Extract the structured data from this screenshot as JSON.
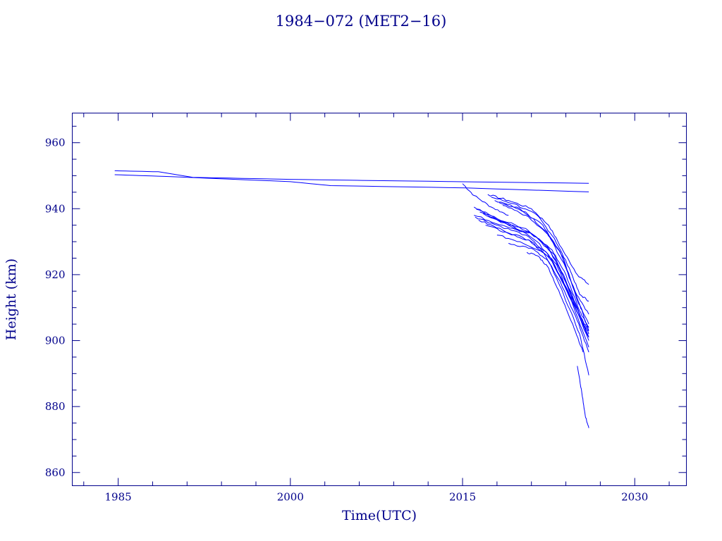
{
  "chart_data": {
    "type": "line",
    "title": "1984−072 (MET2−16)",
    "xlabel": "Time(UTC)",
    "ylabel": "Height (km)",
    "xlim": [
      1981,
      2034.5
    ],
    "ylim": [
      856,
      969
    ],
    "xticks": [
      1985,
      2000,
      2015,
      2030
    ],
    "yticks": [
      860,
      880,
      900,
      920,
      940,
      960
    ],
    "grid": false,
    "legend": "none",
    "colors": {
      "axes": "#00008b",
      "series": "#0000ff",
      "title": "#00008b"
    },
    "series": [
      {
        "points": [
          [
            1984.7,
            951.5
          ],
          [
            1988.5,
            951.2
          ],
          [
            1991.5,
            949.5
          ],
          [
            2000,
            948.9
          ],
          [
            2010,
            948.4
          ],
          [
            2026,
            947.7
          ]
        ]
      },
      {
        "points": [
          [
            1984.7,
            950.3
          ],
          [
            1989,
            949.8
          ],
          [
            2000,
            948.2
          ],
          [
            2003.5,
            947.0
          ],
          [
            2015.3,
            946.3
          ],
          [
            2026,
            945.1
          ]
        ]
      },
      {
        "points": [
          [
            2015.0,
            947.6
          ],
          [
            2016.0,
            944.0
          ],
          [
            2017.5,
            940.5
          ],
          [
            2019,
            938.0
          ]
        ]
      },
      {
        "points": [
          [
            2017.2,
            944.3
          ],
          [
            2019,
            942.5
          ],
          [
            2021,
            940.0
          ],
          [
            2022.5,
            935.0
          ],
          [
            2023.8,
            927.0
          ],
          [
            2025,
            920.0
          ],
          [
            2026,
            917.0
          ]
        ]
      },
      {
        "points": [
          [
            2017.5,
            943.5
          ],
          [
            2019.5,
            941.5
          ],
          [
            2021.5,
            938.0
          ],
          [
            2023,
            931.0
          ],
          [
            2024.3,
            922.0
          ],
          [
            2025.2,
            914.0
          ],
          [
            2026,
            912.0
          ]
        ]
      },
      {
        "points": [
          [
            2017.8,
            942.5
          ],
          [
            2020,
            940.0
          ],
          [
            2022,
            935.0
          ],
          [
            2023.5,
            927.0
          ],
          [
            2024.8,
            915.0
          ],
          [
            2026,
            908.0
          ]
        ]
      },
      {
        "points": [
          [
            2018.2,
            941.8
          ],
          [
            2020.5,
            939.0
          ],
          [
            2022.3,
            933.0
          ],
          [
            2023.8,
            925.0
          ],
          [
            2025,
            912.0
          ],
          [
            2026,
            905.0
          ]
        ]
      },
      {
        "points": [
          [
            2018.5,
            941.0
          ],
          [
            2020.5,
            938.0
          ],
          [
            2022.5,
            932.0
          ],
          [
            2024,
            922.0
          ],
          [
            2025.2,
            911.0
          ],
          [
            2026,
            903.0
          ]
        ]
      },
      {
        "points": [
          [
            2016.0,
            940.5
          ],
          [
            2018,
            937.0
          ],
          [
            2020.5,
            934.0
          ],
          [
            2022.3,
            929.0
          ],
          [
            2023.8,
            920.0
          ],
          [
            2025,
            910.0
          ],
          [
            2026,
            901.0
          ]
        ]
      },
      {
        "points": [
          [
            2016.2,
            939.8
          ],
          [
            2018.5,
            936.0
          ],
          [
            2020.8,
            933.0
          ],
          [
            2022.5,
            928.0
          ],
          [
            2024,
            918.0
          ],
          [
            2025.3,
            907.0
          ],
          [
            2026,
            902.0
          ]
        ]
      },
      {
        "points": [
          [
            2016.5,
            939.0
          ],
          [
            2019,
            935.0
          ],
          [
            2021.2,
            932.0
          ],
          [
            2023,
            926.0
          ],
          [
            2024.3,
            915.0
          ],
          [
            2026,
            900.0
          ]
        ]
      },
      {
        "points": [
          [
            2016.8,
            938.5
          ],
          [
            2019.5,
            934.5
          ],
          [
            2021.5,
            930.0
          ],
          [
            2023.2,
            923.0
          ],
          [
            2024.5,
            912.0
          ],
          [
            2026,
            898.0
          ]
        ]
      },
      {
        "points": [
          [
            2016.0,
            938.0
          ],
          [
            2018.5,
            935.0
          ],
          [
            2021,
            932.5
          ],
          [
            2022.8,
            927.5
          ],
          [
            2024,
            920.0
          ],
          [
            2025.2,
            909.0
          ],
          [
            2026,
            904.0
          ]
        ]
      },
      {
        "points": [
          [
            2016.1,
            937.5
          ],
          [
            2018,
            935.0
          ],
          [
            2020.5,
            932.0
          ],
          [
            2022.5,
            926.0
          ],
          [
            2024,
            916.0
          ],
          [
            2025.5,
            905.0
          ],
          [
            2026,
            903.0
          ]
        ]
      },
      {
        "points": [
          [
            2016.4,
            936.5
          ],
          [
            2018.5,
            933.5
          ],
          [
            2020.8,
            930.5
          ],
          [
            2022.7,
            925.0
          ],
          [
            2024.2,
            915.0
          ],
          [
            2025.6,
            905.0
          ],
          [
            2026,
            904.0
          ]
        ]
      },
      {
        "points": [
          [
            2017,
            935.0
          ],
          [
            2019,
            932.5
          ],
          [
            2021,
            930.0
          ],
          [
            2022.8,
            924.0
          ],
          [
            2024.5,
            912.0
          ],
          [
            2026,
            901.0
          ]
        ]
      },
      {
        "points": [
          [
            2018,
            932.0
          ],
          [
            2020,
            930.0
          ],
          [
            2022,
            927.0
          ],
          [
            2023.5,
            918.0
          ],
          [
            2025,
            906.0
          ],
          [
            2026,
            896.5
          ]
        ]
      },
      {
        "points": [
          [
            2019,
            929.5
          ],
          [
            2021,
            928.0
          ],
          [
            2022.5,
            924.0
          ],
          [
            2023.8,
            914.0
          ],
          [
            2025.2,
            902.0
          ],
          [
            2026,
            889.5
          ]
        ]
      },
      {
        "points": [
          [
            2020.6,
            926.8
          ],
          [
            2021.6,
            925.6
          ],
          [
            2022.5,
            922.0
          ],
          [
            2023.5,
            914.0
          ],
          [
            2024.6,
            905.0
          ],
          [
            2025.5,
            896.5
          ]
        ]
      },
      {
        "points": [
          [
            2025.0,
            892.3
          ],
          [
            2025.4,
            884.0
          ],
          [
            2025.7,
            877.0
          ],
          [
            2026.0,
            873.5
          ]
        ]
      }
    ]
  }
}
